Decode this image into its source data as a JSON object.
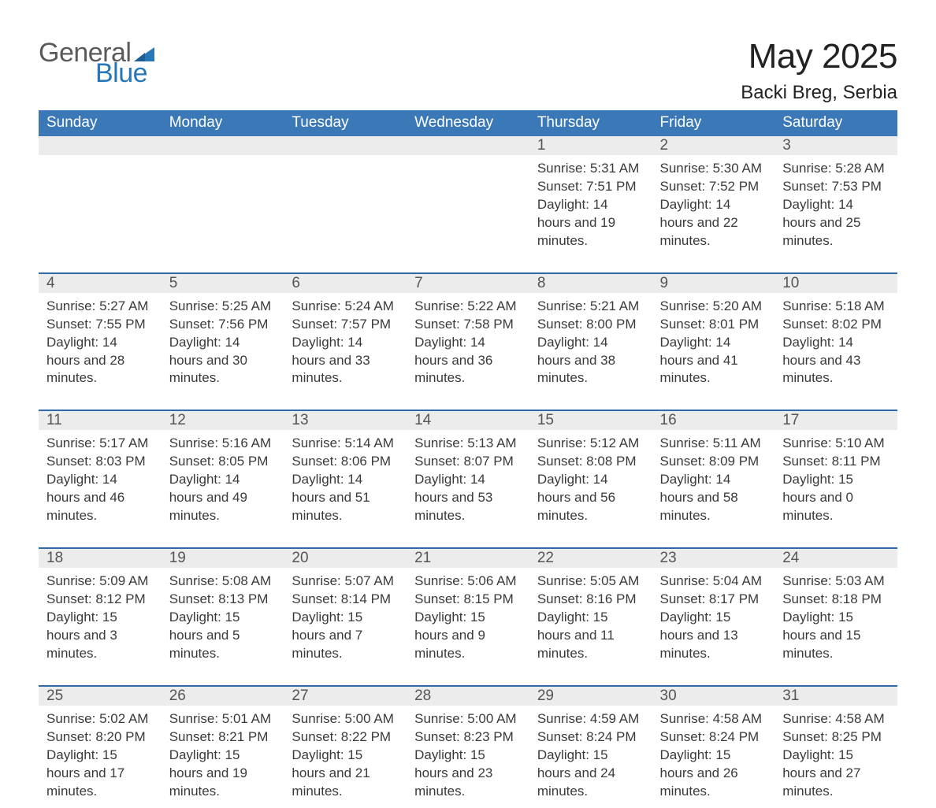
{
  "logo": {
    "word1": "General",
    "word2": "Blue"
  },
  "title": "May 2025",
  "location": "Backi Breg, Serbia",
  "colors": {
    "header_blue": "#3b78b8",
    "divider_blue": "#2f6aa8",
    "row_gray": "#ececec",
    "text_dark": "#3a3a3a",
    "logo_gray": "#5a5a5a",
    "logo_blue": "#2878b9",
    "background": "#ffffff"
  },
  "typography": {
    "title_fontsize_pt": 33,
    "subtitle_fontsize_pt": 18,
    "header_fontsize_pt": 14,
    "daynum_fontsize_pt": 14,
    "body_fontsize_pt": 13,
    "font_family": "Segoe UI / Arial"
  },
  "calendar": {
    "type": "table",
    "columns": [
      "Sunday",
      "Monday",
      "Tuesday",
      "Wednesday",
      "Thursday",
      "Friday",
      "Saturday"
    ],
    "weeks": [
      [
        null,
        null,
        null,
        null,
        {
          "num": "1",
          "sunrise": "5:31 AM",
          "sunset": "7:51 PM",
          "daylight": "14 hours and 19 minutes."
        },
        {
          "num": "2",
          "sunrise": "5:30 AM",
          "sunset": "7:52 PM",
          "daylight": "14 hours and 22 minutes."
        },
        {
          "num": "3",
          "sunrise": "5:28 AM",
          "sunset": "7:53 PM",
          "daylight": "14 hours and 25 minutes."
        }
      ],
      [
        {
          "num": "4",
          "sunrise": "5:27 AM",
          "sunset": "7:55 PM",
          "daylight": "14 hours and 28 minutes."
        },
        {
          "num": "5",
          "sunrise": "5:25 AM",
          "sunset": "7:56 PM",
          "daylight": "14 hours and 30 minutes."
        },
        {
          "num": "6",
          "sunrise": "5:24 AM",
          "sunset": "7:57 PM",
          "daylight": "14 hours and 33 minutes."
        },
        {
          "num": "7",
          "sunrise": "5:22 AM",
          "sunset": "7:58 PM",
          "daylight": "14 hours and 36 minutes."
        },
        {
          "num": "8",
          "sunrise": "5:21 AM",
          "sunset": "8:00 PM",
          "daylight": "14 hours and 38 minutes."
        },
        {
          "num": "9",
          "sunrise": "5:20 AM",
          "sunset": "8:01 PM",
          "daylight": "14 hours and 41 minutes."
        },
        {
          "num": "10",
          "sunrise": "5:18 AM",
          "sunset": "8:02 PM",
          "daylight": "14 hours and 43 minutes."
        }
      ],
      [
        {
          "num": "11",
          "sunrise": "5:17 AM",
          "sunset": "8:03 PM",
          "daylight": "14 hours and 46 minutes."
        },
        {
          "num": "12",
          "sunrise": "5:16 AM",
          "sunset": "8:05 PM",
          "daylight": "14 hours and 49 minutes."
        },
        {
          "num": "13",
          "sunrise": "5:14 AM",
          "sunset": "8:06 PM",
          "daylight": "14 hours and 51 minutes."
        },
        {
          "num": "14",
          "sunrise": "5:13 AM",
          "sunset": "8:07 PM",
          "daylight": "14 hours and 53 minutes."
        },
        {
          "num": "15",
          "sunrise": "5:12 AM",
          "sunset": "8:08 PM",
          "daylight": "14 hours and 56 minutes."
        },
        {
          "num": "16",
          "sunrise": "5:11 AM",
          "sunset": "8:09 PM",
          "daylight": "14 hours and 58 minutes."
        },
        {
          "num": "17",
          "sunrise": "5:10 AM",
          "sunset": "8:11 PM",
          "daylight": "15 hours and 0 minutes."
        }
      ],
      [
        {
          "num": "18",
          "sunrise": "5:09 AM",
          "sunset": "8:12 PM",
          "daylight": "15 hours and 3 minutes."
        },
        {
          "num": "19",
          "sunrise": "5:08 AM",
          "sunset": "8:13 PM",
          "daylight": "15 hours and 5 minutes."
        },
        {
          "num": "20",
          "sunrise": "5:07 AM",
          "sunset": "8:14 PM",
          "daylight": "15 hours and 7 minutes."
        },
        {
          "num": "21",
          "sunrise": "5:06 AM",
          "sunset": "8:15 PM",
          "daylight": "15 hours and 9 minutes."
        },
        {
          "num": "22",
          "sunrise": "5:05 AM",
          "sunset": "8:16 PM",
          "daylight": "15 hours and 11 minutes."
        },
        {
          "num": "23",
          "sunrise": "5:04 AM",
          "sunset": "8:17 PM",
          "daylight": "15 hours and 13 minutes."
        },
        {
          "num": "24",
          "sunrise": "5:03 AM",
          "sunset": "8:18 PM",
          "daylight": "15 hours and 15 minutes."
        }
      ],
      [
        {
          "num": "25",
          "sunrise": "5:02 AM",
          "sunset": "8:20 PM",
          "daylight": "15 hours and 17 minutes."
        },
        {
          "num": "26",
          "sunrise": "5:01 AM",
          "sunset": "8:21 PM",
          "daylight": "15 hours and 19 minutes."
        },
        {
          "num": "27",
          "sunrise": "5:00 AM",
          "sunset": "8:22 PM",
          "daylight": "15 hours and 21 minutes."
        },
        {
          "num": "28",
          "sunrise": "5:00 AM",
          "sunset": "8:23 PM",
          "daylight": "15 hours and 23 minutes."
        },
        {
          "num": "29",
          "sunrise": "4:59 AM",
          "sunset": "8:24 PM",
          "daylight": "15 hours and 24 minutes."
        },
        {
          "num": "30",
          "sunrise": "4:58 AM",
          "sunset": "8:24 PM",
          "daylight": "15 hours and 26 minutes."
        },
        {
          "num": "31",
          "sunrise": "4:58 AM",
          "sunset": "8:25 PM",
          "daylight": "15 hours and 27 minutes."
        }
      ]
    ],
    "labels": {
      "sunrise": "Sunrise: ",
      "sunset": "Sunset: ",
      "daylight": "Daylight: "
    }
  }
}
